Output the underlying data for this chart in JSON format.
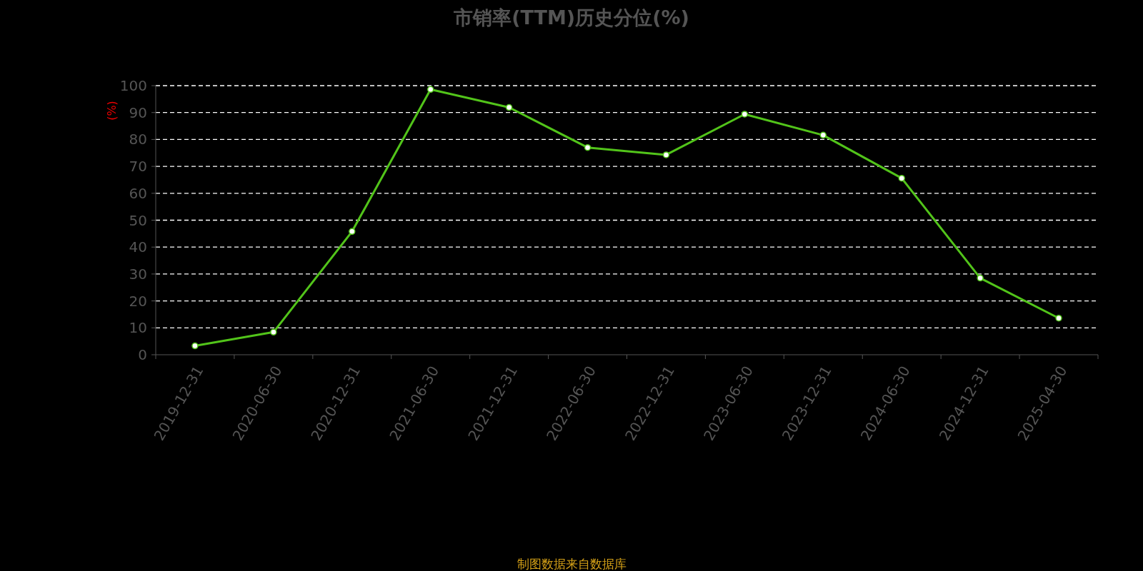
{
  "chart_data": {
    "type": "line",
    "title": "市销率(TTM)历史分位(%)",
    "ylabel": "(%)",
    "categories": [
      "2019-12-31",
      "2020-06-30",
      "2020-12-31",
      "2021-06-30",
      "2021-12-31",
      "2022-06-30",
      "2022-12-31",
      "2023-06-30",
      "2023-12-31",
      "2024-06-30",
      "2024-12-31",
      "2025-04-30"
    ],
    "series": [
      {
        "color": "#52c41a",
        "values": [
          3.3,
          8.4,
          45.8,
          98.6,
          91.9,
          77.0,
          74.3,
          89.4,
          81.6,
          65.6,
          28.5,
          13.6
        ]
      }
    ],
    "ylim": [
      0,
      100
    ],
    "yticks": [
      0,
      10,
      20,
      30,
      40,
      50,
      60,
      70,
      80,
      90,
      100
    ],
    "grid": "y",
    "marker": "circle",
    "line_style": "solid",
    "annotations": [
      "制图数据来自数据库"
    ]
  }
}
